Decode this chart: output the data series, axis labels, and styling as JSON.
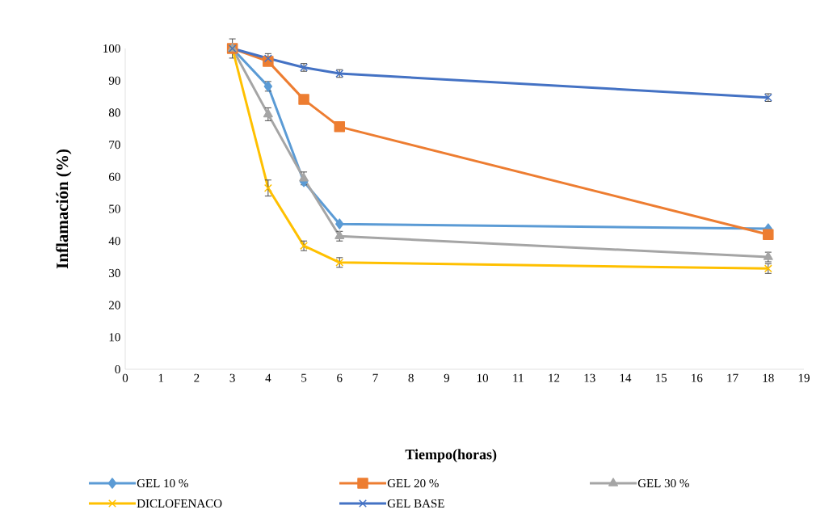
{
  "chart_data": {
    "type": "line",
    "xlabel": "Tiempo(horas)",
    "ylabel": "Inflamación (%)",
    "x": [
      3,
      4,
      5,
      6,
      18
    ],
    "series": [
      {
        "name": "GEL 10 %",
        "color": "#5b9bd5",
        "marker": "diamond",
        "values": [
          100,
          88.2,
          58.5,
          45.3,
          43.8
        ],
        "errors": [
          null,
          1.5,
          null,
          null,
          null
        ]
      },
      {
        "name": "GEL 20 %",
        "color": "#ed7d31",
        "marker": "square",
        "values": [
          100,
          96,
          84.1,
          75.6,
          42
        ],
        "errors": [
          null,
          null,
          null,
          null,
          null
        ]
      },
      {
        "name": "GEL 30 %",
        "color": "#a5a5a5",
        "marker": "triangle",
        "values": [
          100,
          79.5,
          59.5,
          41.5,
          35
        ],
        "errors": [
          3,
          2,
          2,
          1.5,
          1.5
        ]
      },
      {
        "name": "DICLOFENACO",
        "color": "#ffc000",
        "marker": "cross",
        "values": [
          100,
          56.5,
          38.5,
          33.3,
          31.4
        ],
        "errors": [
          null,
          2.5,
          1.5,
          1.5,
          1.5
        ]
      },
      {
        "name": "GEL BASE",
        "color": "#4472c4",
        "marker": "cross",
        "values": [
          100,
          96.9,
          94.1,
          92.2,
          84.7
        ],
        "errors": [
          null,
          1.5,
          1.2,
          1.2,
          1.2
        ]
      }
    ],
    "xlim": [
      0,
      19
    ],
    "ylim": [
      0,
      100
    ],
    "xticks": [
      0,
      1,
      2,
      3,
      4,
      5,
      6,
      7,
      8,
      9,
      10,
      11,
      12,
      13,
      14,
      15,
      16,
      17,
      18,
      19
    ],
    "yticks": [
      0,
      10,
      20,
      30,
      40,
      50,
      60,
      70,
      80,
      90,
      100
    ],
    "grid": false,
    "legend": "bottom",
    "line_style": "solid"
  }
}
